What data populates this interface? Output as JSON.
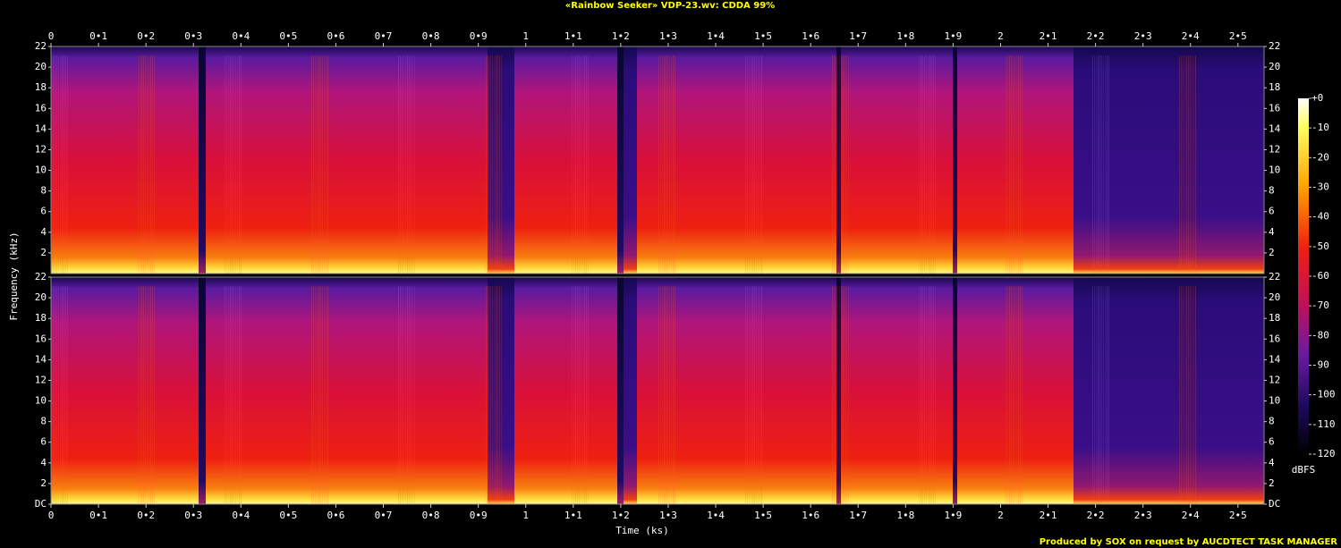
{
  "chart_data": {
    "type": "spectrogram",
    "title": "«Rainbow Seeker» VDP-23.wv: CDDA 99%",
    "x_label": "Time (ks)",
    "y_label": "Frequency (kHz)",
    "xlim": [
      0,
      2.555
    ],
    "xticks": [
      0,
      {
        "value": 0.1,
        "label": "0•1"
      },
      {
        "value": 0.2,
        "label": "0•2"
      },
      {
        "value": 0.3,
        "label": "0•3"
      },
      {
        "value": 0.4,
        "label": "0•4"
      },
      {
        "value": 0.5,
        "label": "0•5"
      },
      {
        "value": 0.6,
        "label": "0•6"
      },
      {
        "value": 0.7,
        "label": "0•7"
      },
      {
        "value": 0.8,
        "label": "0•8"
      },
      {
        "value": 0.9,
        "label": "0•9"
      },
      1,
      {
        "value": 1.1,
        "label": "1•1"
      },
      {
        "value": 1.2,
        "label": "1•2"
      },
      {
        "value": 1.3,
        "label": "1•3"
      },
      {
        "value": 1.4,
        "label": "1•4"
      },
      {
        "value": 1.5,
        "label": "1•5"
      },
      {
        "value": 1.6,
        "label": "1•6"
      },
      {
        "value": 1.7,
        "label": "1•7"
      },
      {
        "value": 1.8,
        "label": "1•8"
      },
      {
        "value": 1.9,
        "label": "1•9"
      },
      2,
      {
        "value": 2.1,
        "label": "2•1"
      },
      {
        "value": 2.2,
        "label": "2•2"
      },
      {
        "value": 2.3,
        "label": "2•3"
      },
      {
        "value": 2.4,
        "label": "2•4"
      },
      {
        "value": 2.5,
        "label": "2•5"
      }
    ],
    "ylim": [
      0,
      22
    ],
    "yticks": [
      {
        "value": 0,
        "label": "DC"
      },
      2,
      4,
      6,
      8,
      10,
      12,
      14,
      16,
      18,
      20,
      22
    ],
    "colorbar": {
      "label": "dBFS",
      "lim": [
        -120,
        0
      ],
      "ticks": [
        {
          "value": 0,
          "label": "+0"
        },
        -10,
        -20,
        -30,
        -40,
        -50,
        -60,
        -70,
        -80,
        -90,
        -100,
        -110,
        -120
      ]
    },
    "footer": "Produced by SOX on request by AUCDTECT TASK MANAGER"
  }
}
